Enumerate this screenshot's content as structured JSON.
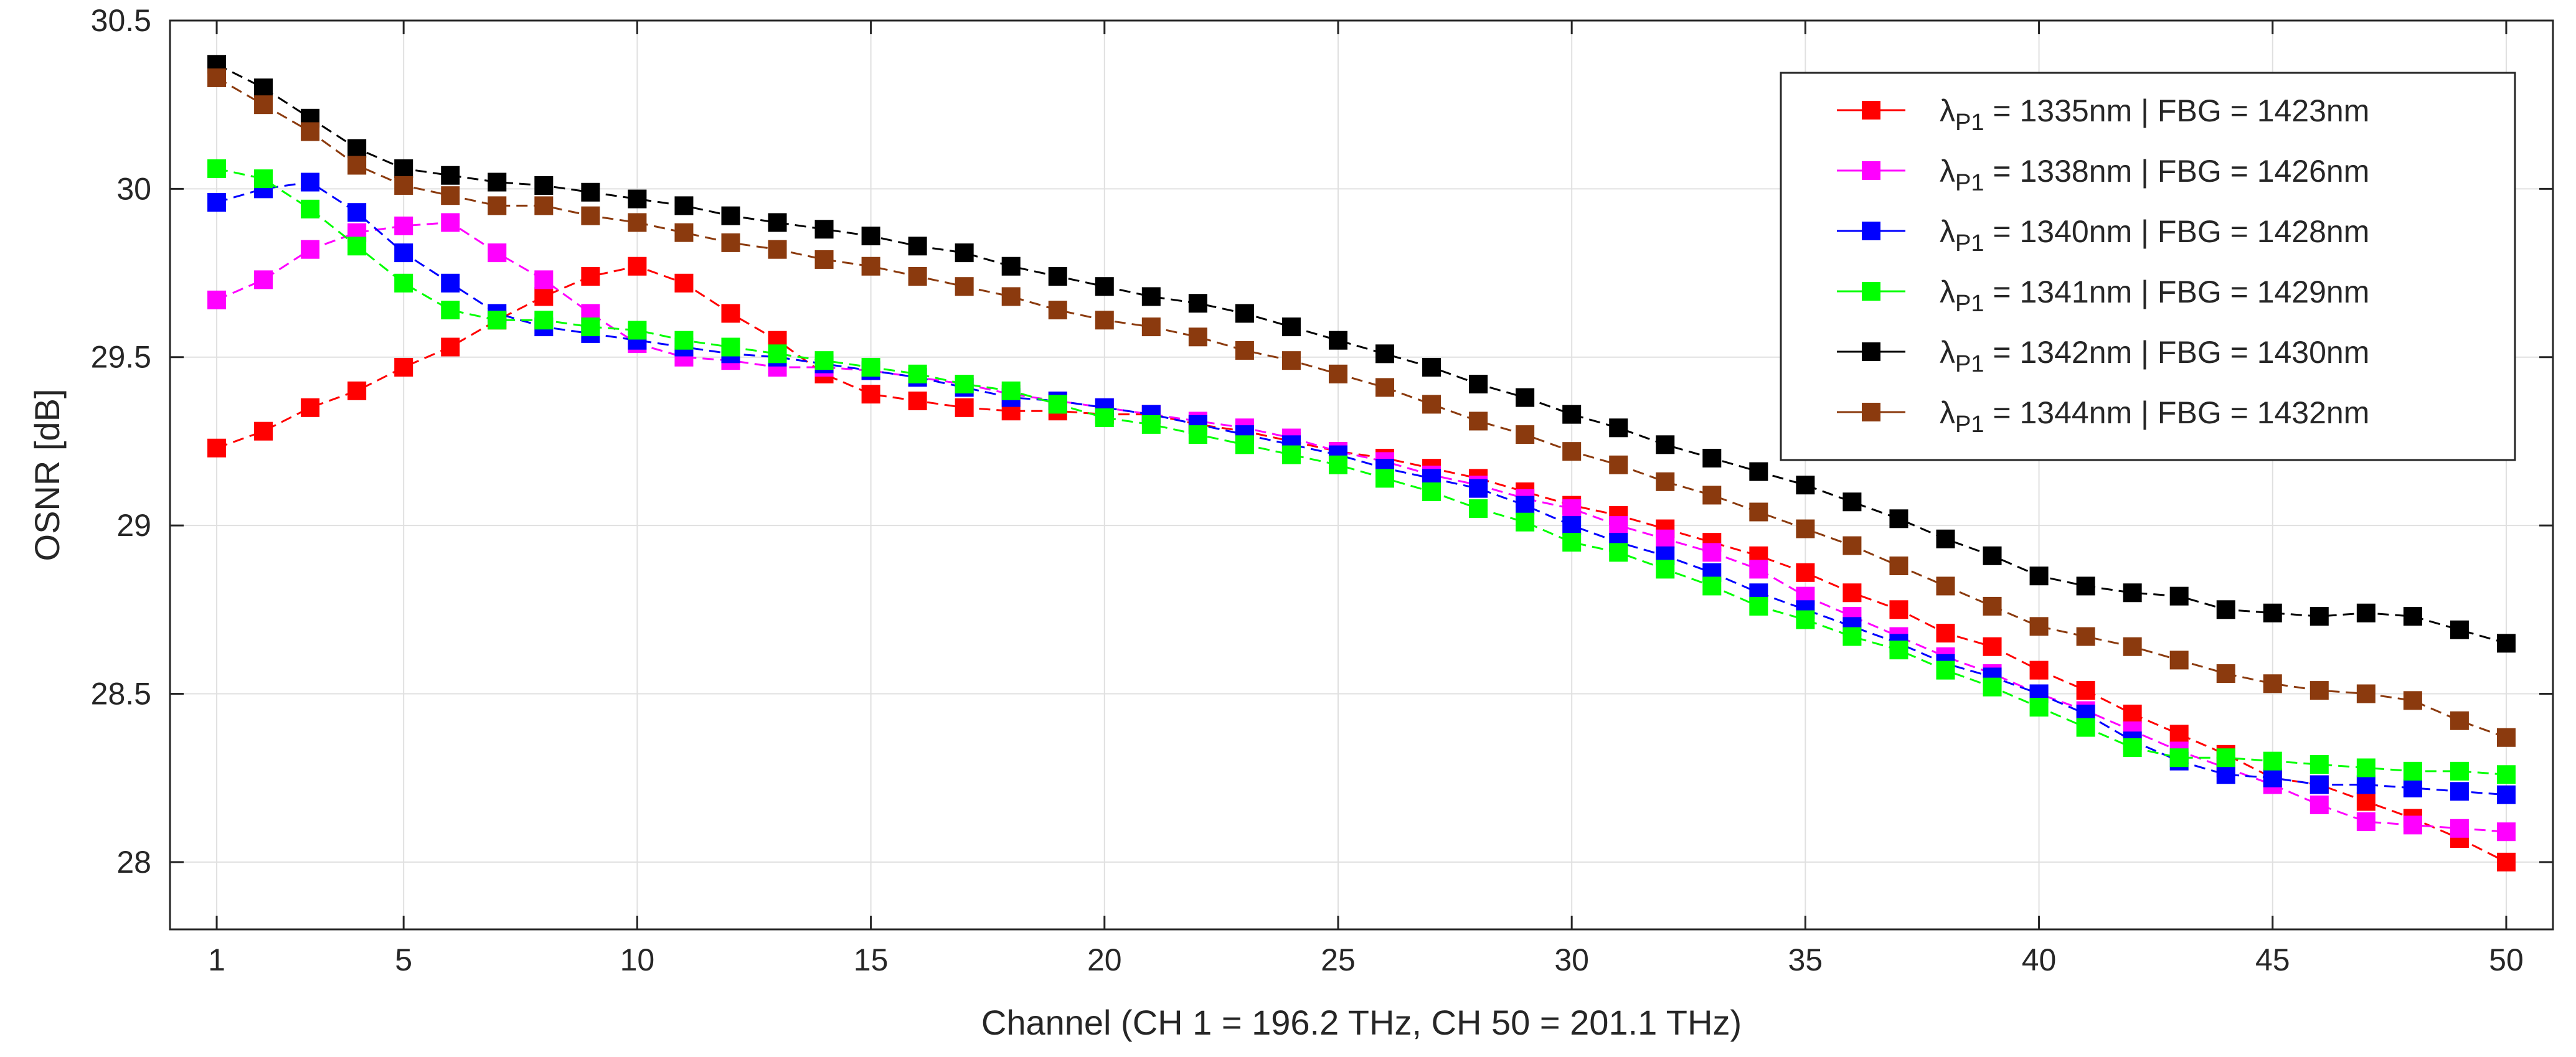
{
  "chart_data": {
    "type": "line",
    "title": "",
    "xlabel": "Channel (CH 1 = 196.2 THz, CH 50 = 201.1 THz)",
    "ylabel": "OSNR [dB]",
    "xlim": [
      0,
      51
    ],
    "ylim": [
      27.8,
      30.5
    ],
    "xticks": [
      1,
      5,
      10,
      15,
      20,
      25,
      30,
      35,
      40,
      45,
      50
    ],
    "yticks": [
      28,
      28.5,
      29,
      29.5,
      30,
      30.5
    ],
    "grid": true,
    "legend_position": "top-right",
    "x": [
      1,
      2,
      3,
      4,
      5,
      6,
      7,
      8,
      9,
      10,
      11,
      12,
      13,
      14,
      15,
      16,
      17,
      18,
      19,
      20,
      21,
      22,
      23,
      24,
      25,
      26,
      27,
      28,
      29,
      30,
      31,
      32,
      33,
      34,
      35,
      36,
      37,
      38,
      39,
      40,
      41,
      42,
      43,
      44,
      45,
      46,
      47,
      48,
      49,
      50
    ],
    "series": [
      {
        "name": "λP1 = 1335nm | FBG = 1423nm",
        "lambda_symbol": "λ",
        "lambda_sub": "P1",
        "legend_text": " = 1335nm | FBG = 1423nm",
        "color": "#ff0000",
        "values": [
          29.23,
          29.28,
          29.35,
          29.4,
          29.47,
          29.53,
          29.61,
          29.68,
          29.74,
          29.77,
          29.72,
          29.63,
          29.55,
          29.45,
          29.39,
          29.37,
          29.35,
          29.34,
          29.34,
          29.33,
          29.33,
          29.3,
          29.28,
          29.25,
          29.22,
          29.2,
          29.17,
          29.14,
          29.1,
          29.06,
          29.03,
          28.99,
          28.95,
          28.91,
          28.86,
          28.8,
          28.75,
          28.68,
          28.64,
          28.57,
          28.51,
          28.44,
          28.38,
          28.32,
          28.25,
          28.23,
          28.18,
          28.13,
          28.07,
          28.0
        ]
      },
      {
        "name": "λP1 = 1338nm | FBG = 1426nm",
        "lambda_symbol": "λ",
        "lambda_sub": "P1",
        "legend_text": " = 1338nm | FBG = 1426nm",
        "color": "#ff00ff",
        "values": [
          29.67,
          29.73,
          29.82,
          29.87,
          29.89,
          29.9,
          29.81,
          29.73,
          29.63,
          29.54,
          29.5,
          29.49,
          29.47,
          29.47,
          29.46,
          29.44,
          29.42,
          29.39,
          29.37,
          29.35,
          29.33,
          29.31,
          29.29,
          29.26,
          29.22,
          29.19,
          29.15,
          29.12,
          29.08,
          29.05,
          29.0,
          28.96,
          28.92,
          28.87,
          28.79,
          28.73,
          28.67,
          28.61,
          28.56,
          28.5,
          28.45,
          28.39,
          28.33,
          28.28,
          28.23,
          28.17,
          28.12,
          28.11,
          28.1,
          28.09
        ]
      },
      {
        "name": "λP1 = 1340nm | FBG = 1428nm",
        "lambda_symbol": "λ",
        "lambda_sub": "P1",
        "legend_text": " = 1340nm | FBG = 1428nm",
        "color": "#0000ff",
        "values": [
          29.96,
          30.0,
          30.02,
          29.93,
          29.81,
          29.72,
          29.63,
          29.59,
          29.57,
          29.55,
          29.53,
          29.51,
          29.5,
          29.48,
          29.46,
          29.44,
          29.41,
          29.38,
          29.37,
          29.35,
          29.33,
          29.3,
          29.27,
          29.24,
          29.21,
          29.17,
          29.14,
          29.11,
          29.06,
          29.0,
          28.95,
          28.91,
          28.86,
          28.8,
          28.75,
          28.7,
          28.65,
          28.59,
          28.55,
          28.5,
          28.44,
          28.36,
          28.3,
          28.26,
          28.25,
          28.23,
          28.23,
          28.22,
          28.21,
          28.2
        ]
      },
      {
        "name": "λP1 = 1341nm | FBG = 1429nm",
        "lambda_symbol": "λ",
        "lambda_sub": "P1",
        "legend_text": " = 1341nm | FBG = 1429nm",
        "color": "#00ff00",
        "values": [
          30.06,
          30.03,
          29.94,
          29.83,
          29.72,
          29.64,
          29.61,
          29.61,
          29.59,
          29.58,
          29.55,
          29.53,
          29.51,
          29.49,
          29.47,
          29.45,
          29.42,
          29.4,
          29.36,
          29.32,
          29.3,
          29.27,
          29.24,
          29.21,
          29.18,
          29.14,
          29.1,
          29.05,
          29.01,
          28.95,
          28.92,
          28.87,
          28.82,
          28.76,
          28.72,
          28.67,
          28.63,
          28.57,
          28.52,
          28.46,
          28.4,
          28.34,
          28.31,
          28.31,
          28.3,
          28.29,
          28.28,
          28.27,
          28.27,
          28.26
        ]
      },
      {
        "name": "λP1 = 1342nm | FBG = 1430nm",
        "lambda_symbol": "λ",
        "lambda_sub": "P1",
        "legend_text": " = 1342nm | FBG = 1430nm",
        "color": "#000000",
        "values": [
          30.37,
          30.3,
          30.21,
          30.12,
          30.06,
          30.04,
          30.02,
          30.01,
          29.99,
          29.97,
          29.95,
          29.92,
          29.9,
          29.88,
          29.86,
          29.83,
          29.81,
          29.77,
          29.74,
          29.71,
          29.68,
          29.66,
          29.63,
          29.59,
          29.55,
          29.51,
          29.47,
          29.42,
          29.38,
          29.33,
          29.29,
          29.24,
          29.2,
          29.16,
          29.12,
          29.07,
          29.02,
          28.96,
          28.91,
          28.85,
          28.82,
          28.8,
          28.79,
          28.75,
          28.74,
          28.73,
          28.74,
          28.73,
          28.69,
          28.65
        ]
      },
      {
        "name": "λP1 = 1344nm | FBG = 1432nm",
        "lambda_symbol": "λ",
        "lambda_sub": "P1",
        "legend_text": " = 1344nm | FBG = 1432nm",
        "color": "#8b3a0e",
        "values": [
          30.33,
          30.25,
          30.17,
          30.07,
          30.01,
          29.98,
          29.95,
          29.95,
          29.92,
          29.9,
          29.87,
          29.84,
          29.82,
          29.79,
          29.77,
          29.74,
          29.71,
          29.68,
          29.64,
          29.61,
          29.59,
          29.56,
          29.52,
          29.49,
          29.45,
          29.41,
          29.36,
          29.31,
          29.27,
          29.22,
          29.18,
          29.13,
          29.09,
          29.04,
          28.99,
          28.94,
          28.88,
          28.82,
          28.76,
          28.7,
          28.67,
          28.64,
          28.6,
          28.56,
          28.53,
          28.51,
          28.5,
          28.48,
          28.42,
          28.37
        ]
      }
    ]
  }
}
